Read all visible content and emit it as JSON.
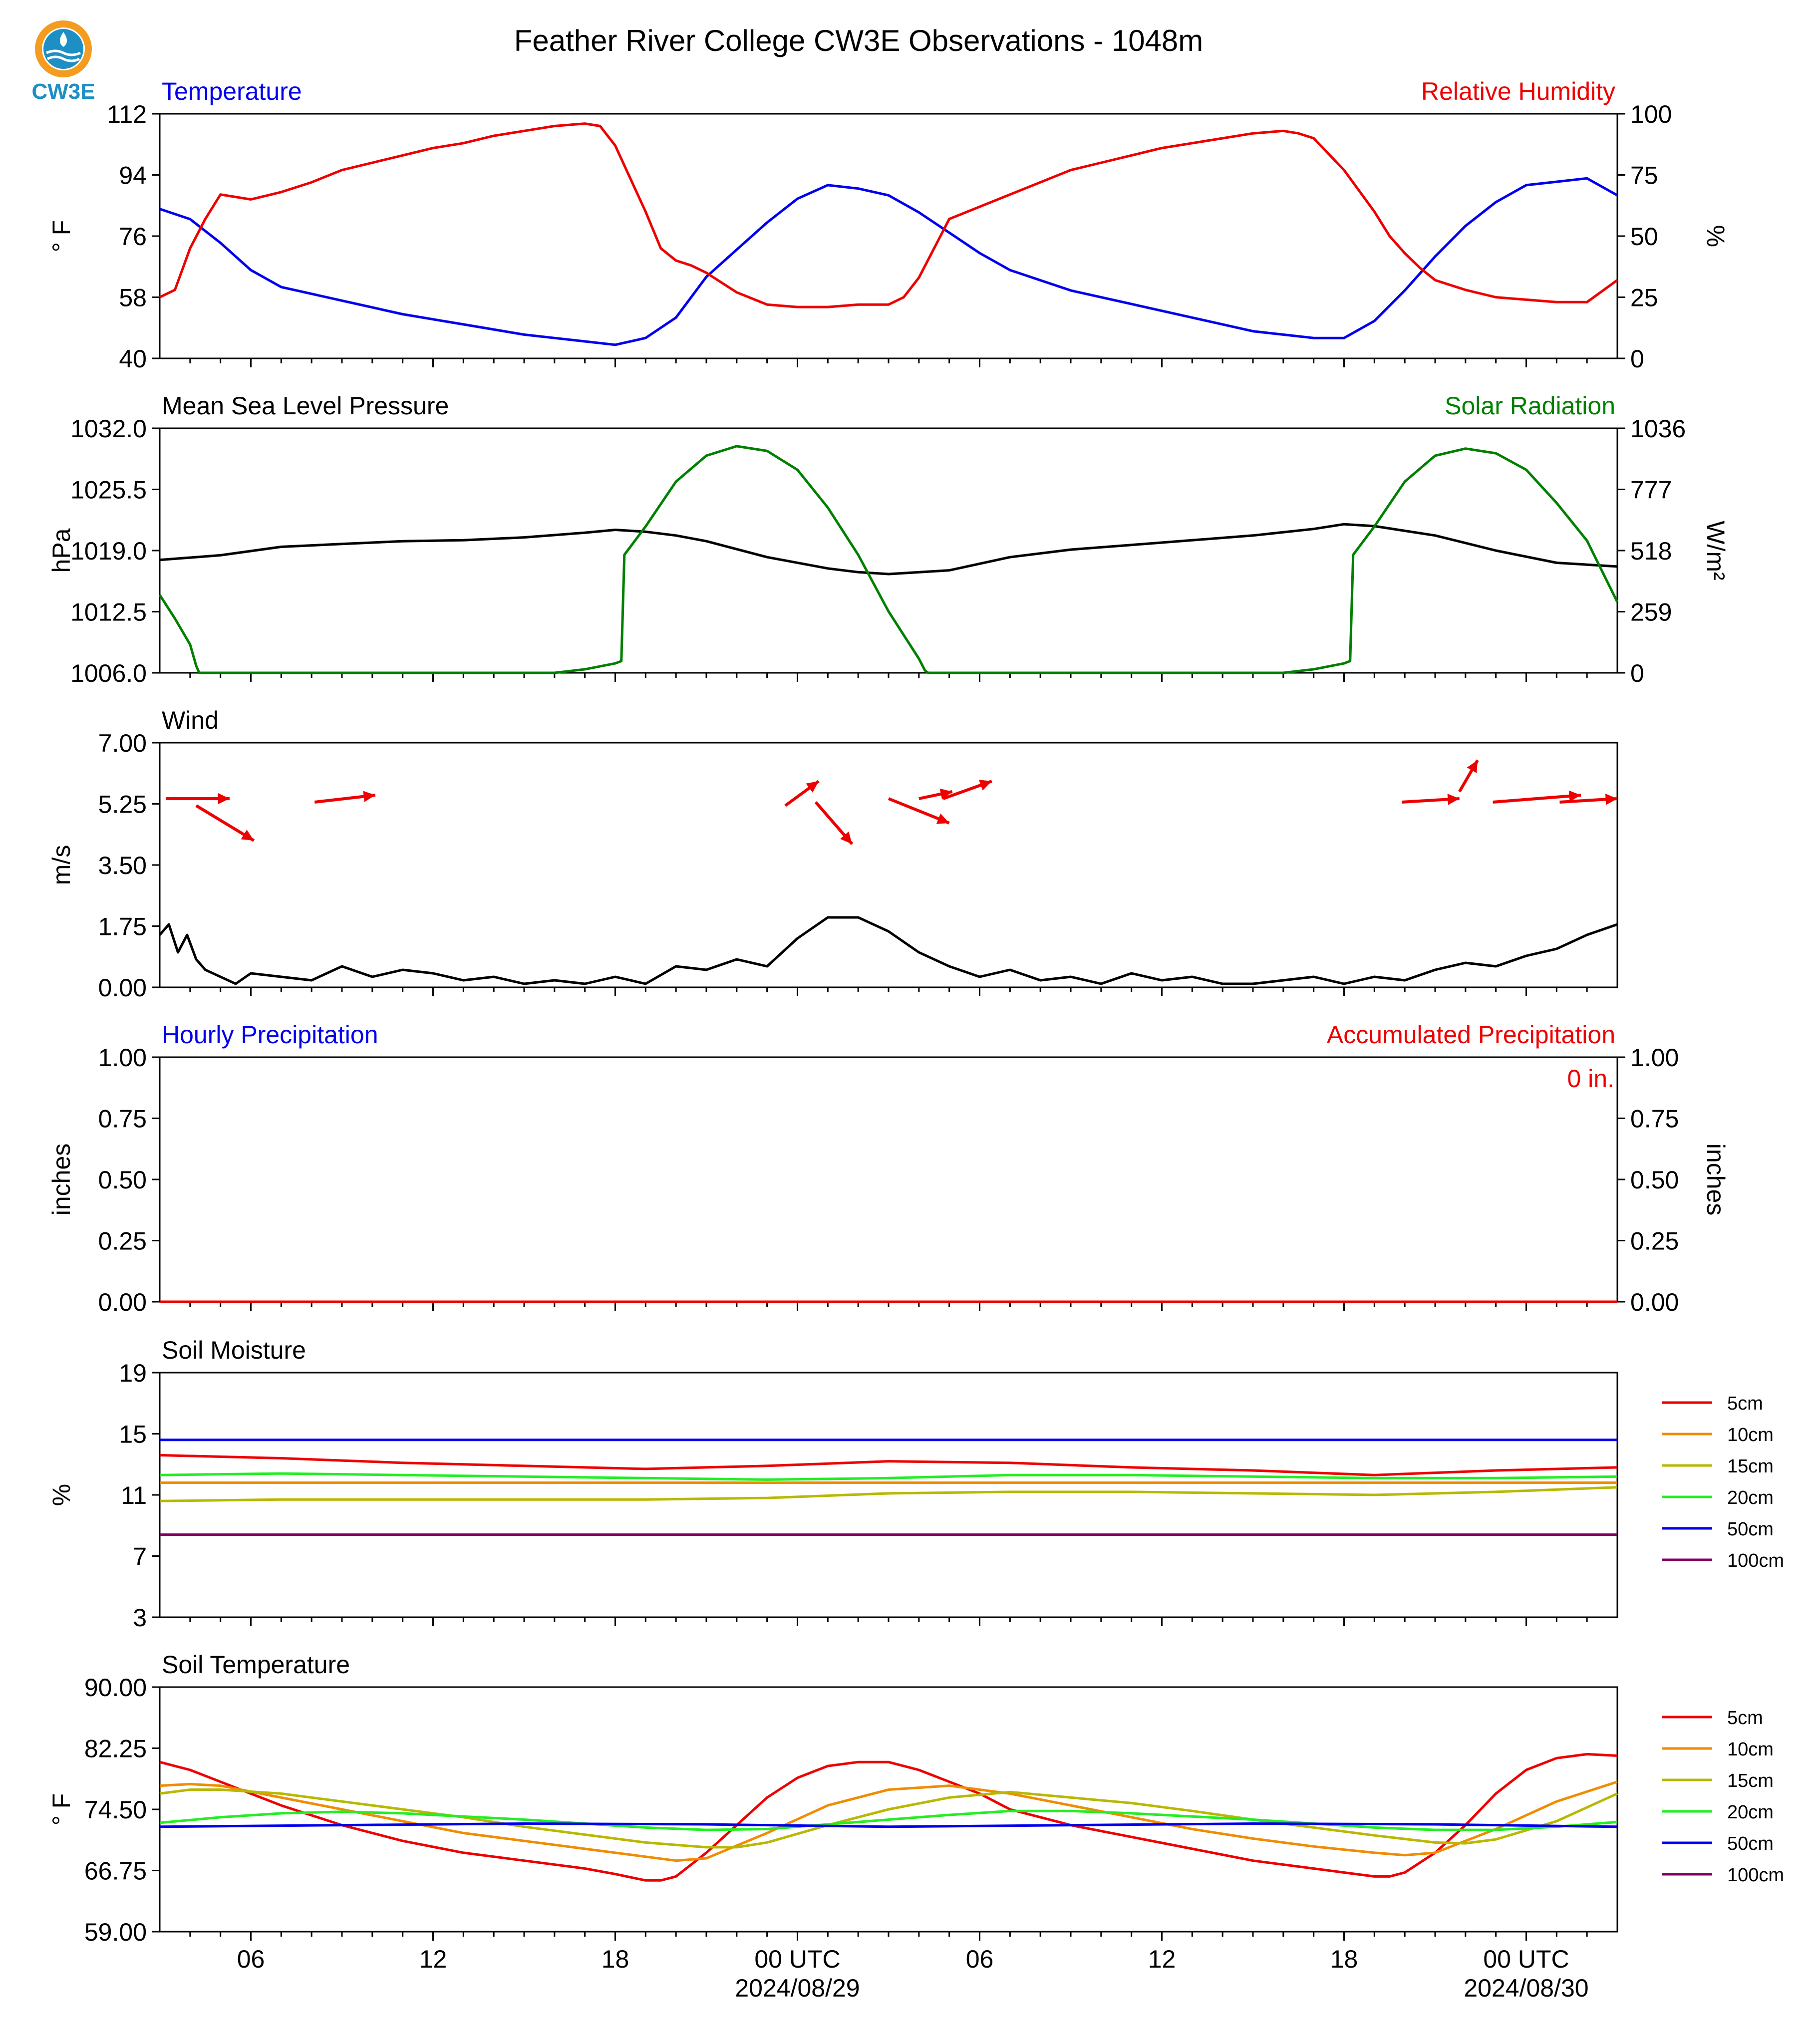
{
  "title": "Feather River College CW3E Observations - 1048m",
  "logo": {
    "text": "CW3E",
    "colors": {
      "ring": "#f39c1f",
      "drop": "#1e8fc4"
    }
  },
  "x_axis": {
    "tick_labels": [
      "06",
      "12",
      "18",
      "00 UTC",
      "06",
      "12",
      "18",
      "00 UTC"
    ],
    "date_labels": [
      "2024/08/29",
      "2024/08/30"
    ]
  },
  "colors": {
    "blue": "#0000ee",
    "red": "#ee0000",
    "green": "#008000",
    "black": "#000000"
  },
  "chart_data": [
    {
      "type": "line",
      "title_left": "Temperature",
      "title_right": "Relative Humidity",
      "ylabel": "° F",
      "ylabel_right": "%",
      "ylim": [
        40,
        112
      ],
      "ylim_right": [
        0,
        100
      ],
      "yticks": [
        "112",
        "94",
        "76",
        "58",
        "40"
      ],
      "yticks_right": [
        "100",
        "75",
        "50",
        "25",
        "0"
      ],
      "series": [
        {
          "axis": "left",
          "color": "#0000ee",
          "x": [
            0,
            1,
            2,
            3,
            4,
            6,
            8,
            10,
            12,
            13,
            14,
            15,
            16,
            17,
            18,
            19,
            20,
            21,
            22,
            23,
            24,
            25,
            26,
            27,
            28,
            30,
            32,
            34,
            36,
            37,
            38,
            39,
            40,
            41,
            42,
            43,
            44,
            45,
            46,
            47,
            48
          ],
          "y": [
            84,
            81,
            74,
            66,
            61,
            57,
            53,
            50,
            47,
            46,
            45,
            44,
            46,
            52,
            64,
            72,
            80,
            87,
            91,
            90,
            88,
            83,
            77,
            71,
            66,
            60,
            56,
            52,
            48,
            47,
            46,
            46,
            51,
            60,
            70,
            79,
            86,
            91,
            92,
            93,
            88
          ]
        },
        {
          "axis": "right",
          "color": "#ee0000",
          "x": [
            0,
            0.5,
            1,
            1.5,
            2,
            3,
            4,
            5,
            6,
            7,
            8,
            9,
            10,
            11,
            12,
            13,
            14,
            14.5,
            15,
            16,
            16.5,
            17,
            17.5,
            18,
            19,
            20,
            21,
            22,
            23,
            24,
            24.5,
            25,
            25.5,
            26,
            27,
            28,
            29,
            30,
            31,
            32,
            33,
            34,
            35,
            36,
            37,
            37.5,
            38,
            39,
            40,
            40.5,
            41,
            41.5,
            42,
            43,
            44,
            45,
            46,
            47,
            48
          ],
          "y": [
            25,
            28,
            45,
            57,
            67,
            65,
            68,
            72,
            77,
            80,
            83,
            86,
            88,
            91,
            93,
            95,
            96,
            95,
            87,
            60,
            45,
            40,
            38,
            35,
            27,
            22,
            21,
            21,
            22,
            22,
            25,
            33,
            45,
            57,
            62,
            67,
            72,
            77,
            80,
            83,
            86,
            88,
            90,
            92,
            93,
            92,
            90,
            77,
            60,
            50,
            43,
            37,
            32,
            28,
            25,
            24,
            23,
            23,
            32
          ]
        }
      ]
    },
    {
      "type": "line",
      "title_left": "Mean Sea Level Pressure",
      "title_right": "Solar Radiation",
      "ylabel": "hPa",
      "ylabel_right": "W/m²",
      "ylim": [
        1006.0,
        1032.0
      ],
      "ylim_right": [
        0,
        1036
      ],
      "yticks": [
        "1032.0",
        "1025.5",
        "1019.0",
        "1012.5",
        "1006.0"
      ],
      "yticks_right": [
        "1036",
        "777",
        "518",
        "259",
        "0"
      ],
      "series": [
        {
          "axis": "left",
          "color": "#000000",
          "x": [
            0,
            2,
            4,
            6,
            8,
            10,
            12,
            14,
            15,
            16,
            17,
            18,
            20,
            22,
            23,
            24,
            26,
            28,
            30,
            32,
            34,
            36,
            38,
            39,
            40,
            42,
            44,
            46,
            48
          ],
          "y": [
            1018,
            1018.5,
            1019.4,
            1019.7,
            1020.0,
            1020.1,
            1020.4,
            1020.9,
            1021.2,
            1021.0,
            1020.6,
            1020.0,
            1018.3,
            1017.1,
            1016.7,
            1016.5,
            1016.9,
            1018.3,
            1019.1,
            1019.6,
            1020.1,
            1020.6,
            1021.3,
            1021.8,
            1021.6,
            1020.6,
            1019.0,
            1017.7,
            1017.3
          ]
        },
        {
          "axis": "right",
          "color": "#008000",
          "x": [
            0,
            0.5,
            1,
            1.2,
            1.3,
            2,
            13,
            14,
            15,
            15.2,
            15.3,
            16,
            17,
            18,
            19,
            20,
            21,
            22,
            23,
            24,
            25,
            25.2,
            25.3,
            37,
            38,
            39,
            39.2,
            39.3,
            40,
            41,
            42,
            43,
            44,
            45,
            46,
            47,
            48
          ],
          "y": [
            330,
            230,
            120,
            30,
            0,
            0,
            0,
            15,
            40,
            50,
            500,
            620,
            810,
            920,
            960,
            940,
            860,
            700,
            500,
            260,
            60,
            10,
            0,
            0,
            15,
            40,
            50,
            500,
            620,
            810,
            920,
            950,
            930,
            860,
            720,
            560,
            300
          ]
        }
      ]
    },
    {
      "type": "line",
      "title_left": "Wind",
      "ylabel": "m/s",
      "ylim": [
        0,
        7.0
      ],
      "yticks": [
        "7.00",
        "5.25",
        "3.50",
        "1.75",
        "0.00"
      ],
      "series": [
        {
          "axis": "left",
          "color": "#000000",
          "x": [
            0,
            0.3,
            0.6,
            0.9,
            1.2,
            1.5,
            2,
            2.5,
            3,
            4,
            5,
            6,
            7,
            8,
            9,
            10,
            11,
            12,
            13,
            14,
            15,
            16,
            17,
            18,
            19,
            20,
            21,
            22,
            23,
            24,
            25,
            26,
            27,
            28,
            29,
            30,
            31,
            32,
            33,
            34,
            35,
            36,
            37,
            38,
            39,
            40,
            41,
            42,
            43,
            44,
            45,
            46,
            47,
            48
          ],
          "y": [
            1.5,
            1.8,
            1.0,
            1.5,
            0.8,
            0.5,
            0.3,
            0.1,
            0.4,
            0.3,
            0.2,
            0.6,
            0.3,
            0.5,
            0.4,
            0.2,
            0.3,
            0.1,
            0.2,
            0.1,
            0.3,
            0.1,
            0.6,
            0.5,
            0.8,
            0.6,
            1.4,
            2.0,
            2.0,
            1.6,
            1.0,
            0.6,
            0.3,
            0.5,
            0.2,
            0.3,
            0.1,
            0.4,
            0.2,
            0.3,
            0.1,
            0.1,
            0.2,
            0.3,
            0.1,
            0.3,
            0.2,
            0.5,
            0.7,
            0.6,
            0.9,
            1.1,
            1.5,
            1.8
          ]
        }
      ],
      "arrows_note": "wind direction vectors"
    },
    {
      "type": "line",
      "title_left": "Hourly Precipitation",
      "title_right": "Accumulated Precipitation",
      "annotation": "0 in.",
      "ylabel": "inches",
      "ylabel_right": "inches",
      "ylim": [
        0,
        1.0
      ],
      "ylim_right": [
        0,
        1.0
      ],
      "yticks": [
        "1.00",
        "0.75",
        "0.50",
        "0.25",
        "0.00"
      ],
      "yticks_right": [
        "1.00",
        "0.75",
        "0.50",
        "0.25",
        "0.00"
      ],
      "series": [
        {
          "axis": "left",
          "color": "#0000ee",
          "x": [
            0,
            48
          ],
          "y": [
            0,
            0
          ]
        },
        {
          "axis": "right",
          "color": "#ee0000",
          "x": [
            0,
            48
          ],
          "y": [
            0,
            0
          ]
        }
      ]
    },
    {
      "type": "line",
      "title_left": "Soil Moisture",
      "ylabel": "%",
      "ylim": [
        3,
        19
      ],
      "yticks": [
        "19",
        "15",
        "11",
        "7",
        "3"
      ],
      "legend": [
        "5cm",
        "10cm",
        "15cm",
        "20cm",
        "50cm",
        "100cm"
      ],
      "series": [
        {
          "name": "5cm",
          "color": "#ee0000",
          "x": [
            0,
            4,
            8,
            12,
            16,
            20,
            24,
            28,
            32,
            36,
            40,
            44,
            48
          ],
          "y": [
            13.6,
            13.4,
            13.1,
            12.9,
            12.7,
            12.9,
            13.2,
            13.1,
            12.8,
            12.6,
            12.3,
            12.6,
            12.8
          ]
        },
        {
          "name": "10cm",
          "color": "#f08c00",
          "x": [
            0,
            48
          ],
          "y": [
            11.8,
            11.8
          ]
        },
        {
          "name": "15cm",
          "color": "#b8b800",
          "x": [
            0,
            4,
            8,
            12,
            16,
            20,
            24,
            28,
            32,
            36,
            40,
            44,
            48
          ],
          "y": [
            10.6,
            10.7,
            10.7,
            10.7,
            10.7,
            10.8,
            11.1,
            11.2,
            11.2,
            11.1,
            11.0,
            11.2,
            11.5
          ]
        },
        {
          "name": "20cm",
          "color": "#22ee22",
          "x": [
            0,
            4,
            8,
            12,
            16,
            20,
            24,
            28,
            32,
            36,
            40,
            44,
            48
          ],
          "y": [
            12.3,
            12.4,
            12.3,
            12.2,
            12.1,
            12.0,
            12.1,
            12.3,
            12.3,
            12.2,
            12.1,
            12.1,
            12.2
          ]
        },
        {
          "name": "50cm",
          "color": "#0000ee",
          "x": [
            0,
            48
          ],
          "y": [
            14.6,
            14.6
          ]
        },
        {
          "name": "100cm",
          "color": "#800060",
          "x": [
            0,
            48
          ],
          "y": [
            8.4,
            8.4
          ]
        }
      ]
    },
    {
      "type": "line",
      "title_left": "Soil Temperature",
      "ylabel": "° F",
      "ylim": [
        59.0,
        90.0
      ],
      "yticks": [
        "90.00",
        "82.25",
        "74.50",
        "66.75",
        "59.00"
      ],
      "legend": [
        "5cm",
        "10cm",
        "15cm",
        "20cm",
        "50cm",
        "100cm"
      ],
      "series": [
        {
          "name": "5cm",
          "color": "#ee0000",
          "x": [
            0,
            1,
            2,
            3,
            4,
            6,
            8,
            10,
            12,
            14,
            15,
            16,
            16.5,
            17,
            18,
            19,
            20,
            21,
            22,
            23,
            24,
            25,
            26,
            27,
            28,
            30,
            32,
            34,
            36,
            38,
            39,
            40,
            40.5,
            41,
            42,
            43,
            44,
            45,
            46,
            47,
            48
          ],
          "y": [
            80.5,
            79.5,
            78,
            76.5,
            75,
            72.5,
            70.5,
            69,
            68,
            67,
            66.3,
            65.5,
            65.5,
            66,
            69,
            72.5,
            76,
            78.5,
            80,
            80.5,
            80.5,
            79.5,
            78,
            76.5,
            74.5,
            72.5,
            71,
            69.5,
            68,
            67,
            66.5,
            66,
            66,
            66.5,
            69,
            72.5,
            76.5,
            79.5,
            81,
            81.5,
            81.3
          ]
        },
        {
          "name": "10cm",
          "color": "#f08c00",
          "x": [
            0,
            1,
            2,
            4,
            6,
            8,
            10,
            12,
            14,
            16,
            17,
            18,
            20,
            22,
            24,
            26,
            28,
            30,
            32,
            34,
            36,
            38,
            40,
            41,
            42,
            44,
            46,
            48
          ],
          "y": [
            77.5,
            77.7,
            77.5,
            76,
            74.5,
            73,
            71.5,
            70.5,
            69.5,
            68.5,
            68.0,
            68.3,
            71.5,
            75,
            77,
            77.5,
            76.5,
            75,
            73.5,
            72,
            70.8,
            69.8,
            69,
            68.7,
            69,
            72,
            75.5,
            78
          ]
        },
        {
          "name": "15cm",
          "color": "#b8b800",
          "x": [
            0,
            1,
            2,
            4,
            6,
            8,
            10,
            12,
            14,
            16,
            18,
            19,
            20,
            22,
            24,
            26,
            28,
            30,
            32,
            34,
            36,
            38,
            40,
            42,
            43,
            44,
            46,
            48
          ],
          "y": [
            76.5,
            77.0,
            77.0,
            76.5,
            75.5,
            74.5,
            73.5,
            72.3,
            71.3,
            70.3,
            69.7,
            69.7,
            70.3,
            72.5,
            74.5,
            76,
            76.7,
            76,
            75.3,
            74.3,
            73.2,
            72.2,
            71.2,
            70.3,
            70.2,
            70.7,
            73,
            76.5
          ]
        },
        {
          "name": "20cm",
          "color": "#22ee22",
          "x": [
            0,
            2,
            4,
            6,
            8,
            10,
            12,
            14,
            16,
            18,
            20,
            22,
            24,
            26,
            28,
            30,
            32,
            34,
            36,
            38,
            40,
            42,
            44,
            46,
            48
          ],
          "y": [
            72.8,
            73.5,
            74.0,
            74.2,
            74.0,
            73.6,
            73.2,
            72.7,
            72.2,
            71.9,
            72.0,
            72.6,
            73.2,
            73.8,
            74.3,
            74.3,
            74.0,
            73.6,
            73.2,
            72.7,
            72.2,
            71.9,
            71.9,
            72.3,
            72.9
          ]
        },
        {
          "name": "50cm",
          "color": "#0000ee",
          "x": [
            0,
            6,
            12,
            18,
            24,
            30,
            36,
            42,
            48
          ],
          "y": [
            72.3,
            72.5,
            72.7,
            72.6,
            72.3,
            72.5,
            72.7,
            72.6,
            72.3
          ]
        }
      ]
    }
  ]
}
